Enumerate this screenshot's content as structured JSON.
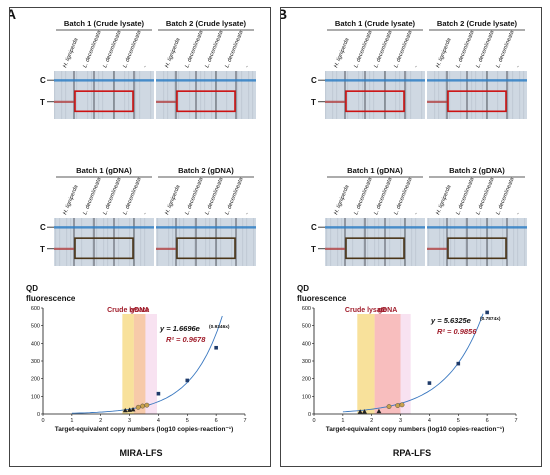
{
  "panels": [
    {
      "letter": "A",
      "batch_labels": [
        "Batch 1 (Crude lysate)",
        "Batch 2 (Crude lysate)",
        "Batch 1 (gDNA)",
        "Batch 2 (gDNA)"
      ],
      "lane_labels": [
        "H. ligniperda",
        "L. decemlineata",
        "L. decemlineata",
        "L. decemlineata",
        "-"
      ],
      "control_line_label": "C",
      "test_line_label": "T",
      "equation_text": "y = 1.6696e",
      "equation_exponent": "(0.9346x)",
      "r2_text": "R² = 0.9678",
      "method_label": "MIRA-LFS",
      "colors": {
        "line_color": "#3a78c0",
        "box_crude": "#cc1111",
        "box_gdna": "#4a3518"
      },
      "chart_data": {
        "type": "scatter",
        "ylabel": "QD fluorescence",
        "xlabel": "Target-equivalent copy numbers (log10 copies·reaction⁻¹)",
        "xlim": [
          0,
          7
        ],
        "ylim": [
          0,
          600
        ],
        "x_ticks": [
          0,
          1,
          2,
          3,
          4,
          5,
          6,
          7
        ],
        "y_ticks": [
          0,
          100,
          200,
          300,
          400,
          500,
          600
        ],
        "regions": [
          {
            "label": "Crude lysate",
            "x": [
              2.75,
              3.15
            ],
            "color": "#f5d77a"
          },
          {
            "label": "gDNA",
            "x": [
              3.15,
              3.55
            ],
            "color": "#f4b88c"
          },
          {
            "label": "",
            "x": [
              3.55,
              3.95
            ],
            "color": "#f6d8ec"
          }
        ],
        "series": [
          {
            "marker": "triangle",
            "color": "#222222",
            "x": [
              2.85,
              3.0,
              3.12
            ],
            "y": [
              20,
              22,
              25
            ]
          },
          {
            "marker": "circle",
            "color": "#c9a24d",
            "x": [
              3.3,
              3.45,
              3.6
            ],
            "y": [
              38,
              45,
              50
            ]
          },
          {
            "marker": "square",
            "color": "#1f3b6a",
            "x": [
              4.0,
              5.0,
              6.0
            ],
            "y": [
              115,
              190,
              375
            ]
          }
        ]
      }
    },
    {
      "letter": "B",
      "batch_labels": [
        "Batch 1 (Crude lysate)",
        "Batch 2 (Crude lysate)",
        "Batch 1 (gDNA)",
        "Batch 2 (gDNA)"
      ],
      "lane_labels": [
        "H. ligniperda",
        "L. decemlineata",
        "L. decemlineata",
        "L. decemlineata",
        "-"
      ],
      "control_line_label": "C",
      "test_line_label": "T",
      "equation_text": "y = 5.6325e",
      "equation_exponent": "(0.7874x)",
      "r2_text": "R² = 0.9856",
      "method_label": "RPA-LFS",
      "colors": {
        "line_color": "#3a78c0",
        "box_crude": "#cc1111",
        "box_gdna": "#4a3518"
      },
      "chart_data": {
        "type": "scatter",
        "ylabel": "QD fluorescence",
        "xlabel": "Target-equivalent copy numbers (log10 copies·reaction⁻¹)",
        "xlim": [
          0,
          7
        ],
        "ylim": [
          0,
          600
        ],
        "x_ticks": [
          0,
          1,
          2,
          3,
          4,
          5,
          6,
          7
        ],
        "y_ticks": [
          0,
          100,
          200,
          300,
          400,
          500,
          600
        ],
        "regions": [
          {
            "label": "Crude lysate",
            "x": [
              1.5,
              2.1
            ],
            "color": "#f5d77a"
          },
          {
            "label": "gDNA",
            "x": [
              2.1,
              3.0
            ],
            "color": "#f6a8a8"
          },
          {
            "label": "",
            "x": [
              3.0,
              3.35
            ],
            "color": "#f6d8ec"
          }
        ],
        "series": [
          {
            "marker": "triangle",
            "color": "#222222",
            "x": [
              1.6,
              1.75,
              2.25
            ],
            "y": [
              12,
              13,
              15
            ]
          },
          {
            "marker": "circle",
            "color": "#c9a24d",
            "x": [
              2.6,
              2.9,
              3.05
            ],
            "y": [
              42,
              48,
              52
            ]
          },
          {
            "marker": "square",
            "color": "#1f3b6a",
            "x": [
              4.0,
              5.0,
              6.0
            ],
            "y": [
              175,
              285,
              575
            ]
          }
        ]
      }
    }
  ]
}
